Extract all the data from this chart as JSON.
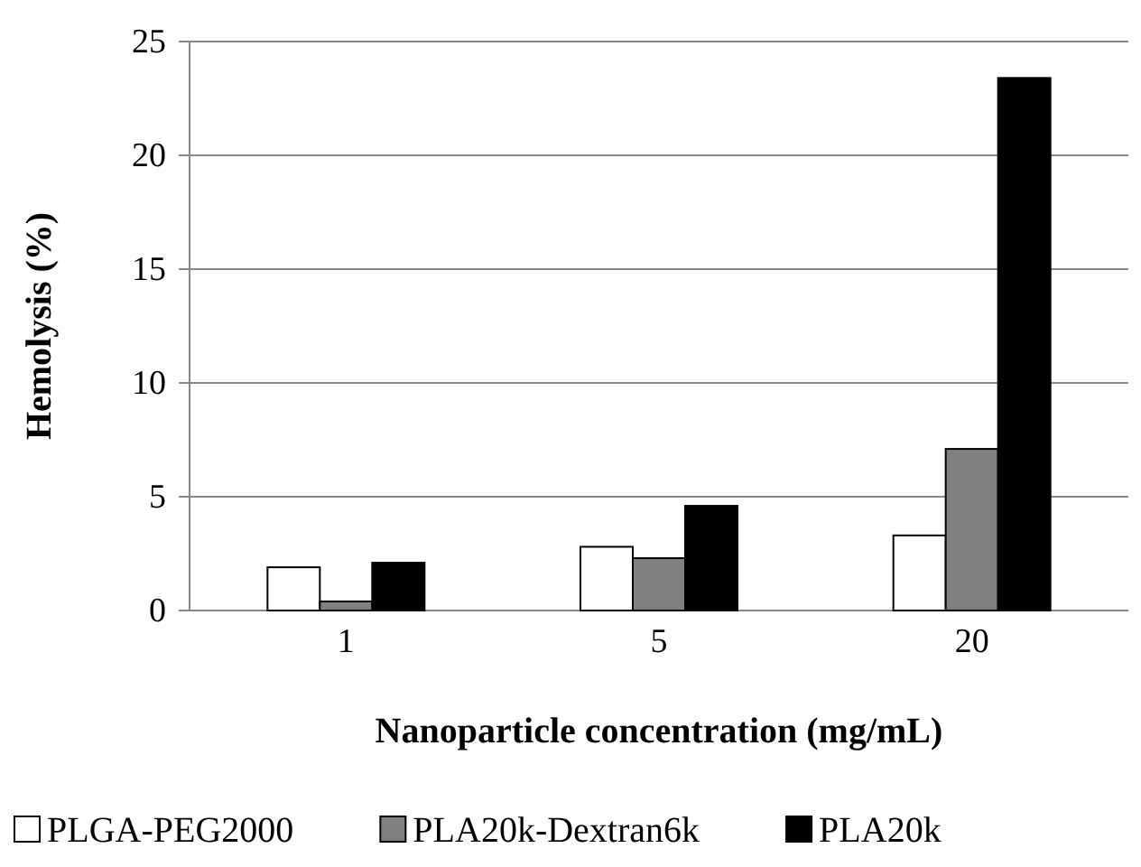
{
  "chart_data": {
    "type": "bar",
    "xlabel": "Nanoparticle concentration (mg/mL)",
    "ylabel": "Hemolysis (%)",
    "categories": [
      "1",
      "5",
      "20"
    ],
    "series": [
      {
        "name": "PLGA-PEG2000",
        "color": "#ffffff",
        "values": [
          1.9,
          2.8,
          3.3
        ]
      },
      {
        "name": "PLA20k-Dextran6k",
        "color": "#808080",
        "values": [
          0.4,
          2.3,
          7.1
        ]
      },
      {
        "name": "PLA20k",
        "color": "#000000",
        "values": [
          2.1,
          4.6,
          23.4
        ]
      }
    ],
    "ylim": [
      0,
      25
    ],
    "yticks": [
      0,
      5,
      10,
      15,
      20,
      25
    ],
    "grid": "y",
    "legend": "bottom"
  }
}
